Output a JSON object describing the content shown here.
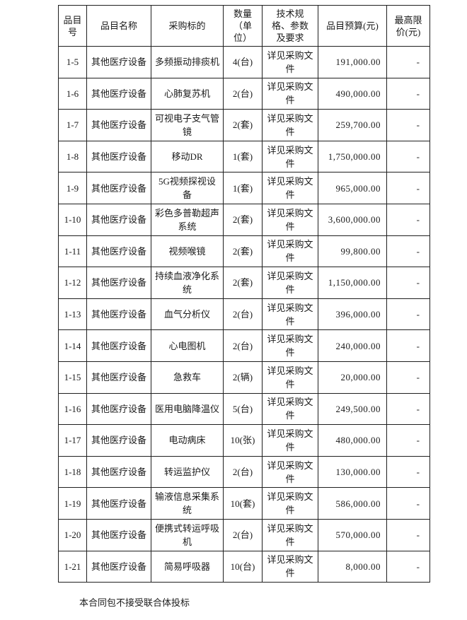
{
  "colors": {
    "background": "#ffffff",
    "border": "#1f1f1f",
    "text": "#1a1a1a"
  },
  "table": {
    "headers": [
      "品目\n号",
      "品目名称",
      "采购标的",
      "数量\n（单\n位）",
      "技术规\n格、参数\n及要求",
      "品目预算(元)",
      "最高限\n价(元)"
    ],
    "rows": [
      {
        "no": "1-5",
        "name": "其他医疗设备",
        "target": "多频振动排痰机",
        "qty": "4(台)",
        "spec": "详见采购文件",
        "budget": "191,000.00",
        "limit": "-"
      },
      {
        "no": "1-6",
        "name": "其他医疗设备",
        "target": "心肺复苏机",
        "qty": "2(台)",
        "spec": "详见采购文件",
        "budget": "490,000.00",
        "limit": "-"
      },
      {
        "no": "1-7",
        "name": "其他医疗设备",
        "target": "可视电子支气管镜",
        "qty": "2(套)",
        "spec": "详见采购文件",
        "budget": "259,700.00",
        "limit": "-"
      },
      {
        "no": "1-8",
        "name": "其他医疗设备",
        "target": "移动DR",
        "qty": "1(套)",
        "spec": "详见采购文件",
        "budget": "1,750,000.00",
        "limit": "-"
      },
      {
        "no": "1-9",
        "name": "其他医疗设备",
        "target": "5G视频探视设备",
        "qty": "1(套)",
        "spec": "详见采购文件",
        "budget": "965,000.00",
        "limit": "-"
      },
      {
        "no": "1-10",
        "name": "其他医疗设备",
        "target": "彩色多普勒超声系统",
        "qty": "2(套)",
        "spec": "详见采购文件",
        "budget": "3,600,000.00",
        "limit": "-"
      },
      {
        "no": "1-11",
        "name": "其他医疗设备",
        "target": "视频喉镜",
        "qty": "2(套)",
        "spec": "详见采购文件",
        "budget": "99,800.00",
        "limit": "-"
      },
      {
        "no": "1-12",
        "name": "其他医疗设备",
        "target": "持续血液净化系统",
        "qty": "2(套)",
        "spec": "详见采购文件",
        "budget": "1,150,000.00",
        "limit": "-"
      },
      {
        "no": "1-13",
        "name": "其他医疗设备",
        "target": "血气分析仪",
        "qty": "2(台)",
        "spec": "详见采购文件",
        "budget": "396,000.00",
        "limit": "-"
      },
      {
        "no": "1-14",
        "name": "其他医疗设备",
        "target": "心电图机",
        "qty": "2(台)",
        "spec": "详见采购文件",
        "budget": "240,000.00",
        "limit": "-"
      },
      {
        "no": "1-15",
        "name": "其他医疗设备",
        "target": "急救车",
        "qty": "2(辆)",
        "spec": "详见采购文件",
        "budget": "20,000.00",
        "limit": "-"
      },
      {
        "no": "1-16",
        "name": "其他医疗设备",
        "target": "医用电脑降温仪",
        "qty": "5(台)",
        "spec": "详见采购文件",
        "budget": "249,500.00",
        "limit": "-"
      },
      {
        "no": "1-17",
        "name": "其他医疗设备",
        "target": "电动病床",
        "qty": "10(张)",
        "spec": "详见采购文件",
        "budget": "480,000.00",
        "limit": "-"
      },
      {
        "no": "1-18",
        "name": "其他医疗设备",
        "target": "转运监护仪",
        "qty": "2(台)",
        "spec": "详见采购文件",
        "budget": "130,000.00",
        "limit": "-"
      },
      {
        "no": "1-19",
        "name": "其他医疗设备",
        "target": "输液信息采集系统",
        "qty": "10(套)",
        "spec": "详见采购文件",
        "budget": "586,000.00",
        "limit": "-"
      },
      {
        "no": "1-20",
        "name": "其他医疗设备",
        "target": "便携式转运呼吸机",
        "qty": "2(台)",
        "spec": "详见采购文件",
        "budget": "570,000.00",
        "limit": "-"
      },
      {
        "no": "1-21",
        "name": "其他医疗设备",
        "target": "简易呼吸器",
        "qty": "10(台)",
        "spec": "详见采购文件",
        "budget": "8,000.00",
        "limit": "-"
      }
    ]
  },
  "footer": {
    "note": "本合同包不接受联合体投标"
  }
}
